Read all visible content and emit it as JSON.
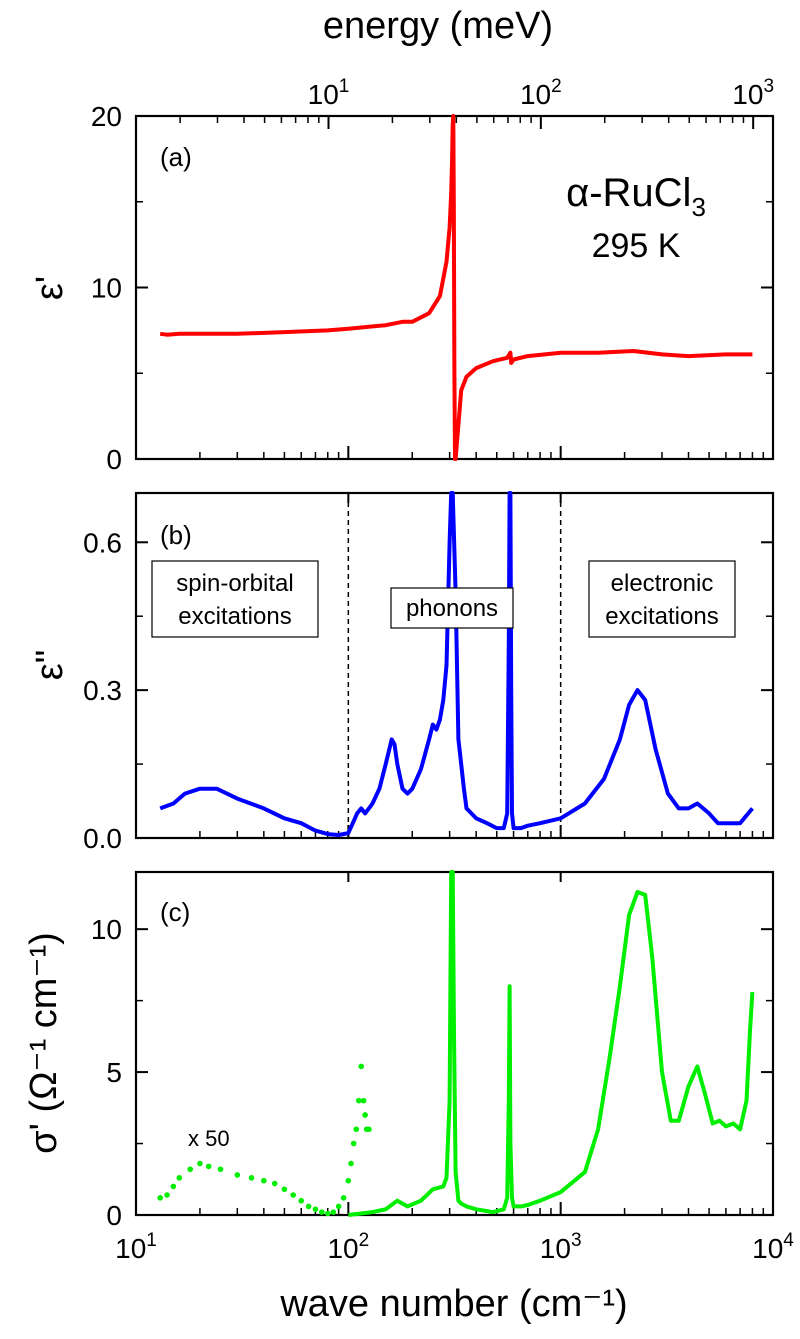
{
  "chart_data": [
    {
      "type": "line",
      "panel_label": "(a)",
      "ylabel": "ε'",
      "annotations": [
        "α-RuCl₃",
        "295 K"
      ],
      "xscale": "log",
      "xlim": [
        10,
        10000
      ],
      "ylim": [
        0,
        20
      ],
      "yticks": [
        0,
        10,
        20
      ],
      "color": "#ff0000",
      "series": [
        {
          "x": [
            13,
            14,
            16,
            20,
            30,
            50,
            80,
            100,
            150,
            180,
            200,
            240,
            270,
            290,
            300,
            305,
            308,
            310,
            312,
            314,
            316,
            318,
            320,
            340,
            360,
            400,
            480,
            560,
            580,
            585,
            600,
            700,
            1000,
            1500,
            2200,
            3000,
            4000,
            6000,
            8000
          ],
          "y": [
            7.3,
            7.25,
            7.3,
            7.3,
            7.3,
            7.4,
            7.5,
            7.6,
            7.8,
            8.0,
            8.0,
            8.5,
            9.5,
            11.5,
            13.5,
            15.5,
            17.5,
            19.5,
            20,
            15,
            5,
            0,
            0,
            4.0,
            4.8,
            5.3,
            5.7,
            5.9,
            6.2,
            5.6,
            5.8,
            6.0,
            6.2,
            6.2,
            6.3,
            6.1,
            6.0,
            6.1,
            6.1
          ]
        }
      ]
    },
    {
      "type": "line",
      "panel_label": "(b)",
      "ylabel": "ε\"",
      "xscale": "log",
      "xlim": [
        10,
        10000
      ],
      "ylim": [
        0,
        0.7
      ],
      "yticks": [
        0.0,
        0.3,
        0.6
      ],
      "ytick_labels": [
        "0.0",
        "0.3",
        "0.6"
      ],
      "color": "#0000ff",
      "regions": [
        {
          "label": [
            "spin-orbital",
            "excitations"
          ]
        },
        {
          "label": [
            "phonons"
          ]
        },
        {
          "label": [
            "electronic",
            "excitations"
          ]
        }
      ],
      "dividers_x": [
        100,
        1000
      ],
      "series": [
        {
          "x": [
            13,
            15,
            17,
            20,
            24,
            30,
            40,
            50,
            60,
            70,
            80,
            90,
            100,
            105,
            110,
            115,
            120,
            125,
            130,
            140,
            150,
            160,
            165,
            170,
            180,
            190,
            200,
            220,
            240,
            250,
            260,
            270,
            280,
            290,
            300,
            305,
            310,
            320,
            330,
            340,
            350,
            360,
            380,
            400,
            450,
            500,
            540,
            560,
            570,
            575,
            580,
            585,
            590,
            600,
            650,
            700,
            800,
            1000,
            1300,
            1600,
            1900,
            2100,
            2300,
            2500,
            2800,
            3200,
            3600,
            4000,
            4400,
            5000,
            5500,
            6000,
            7000,
            8000
          ],
          "y": [
            0.06,
            0.07,
            0.09,
            0.1,
            0.1,
            0.08,
            0.06,
            0.04,
            0.03,
            0.015,
            0.008,
            0.006,
            0.01,
            0.03,
            0.05,
            0.06,
            0.05,
            0.06,
            0.07,
            0.1,
            0.15,
            0.2,
            0.19,
            0.15,
            0.1,
            0.09,
            0.1,
            0.14,
            0.2,
            0.23,
            0.22,
            0.24,
            0.28,
            0.35,
            0.6,
            0.7,
            0.7,
            0.5,
            0.2,
            0.15,
            0.1,
            0.06,
            0.05,
            0.04,
            0.03,
            0.02,
            0.02,
            0.05,
            0.4,
            0.7,
            0.7,
            0.3,
            0.05,
            0.02,
            0.02,
            0.025,
            0.03,
            0.04,
            0.07,
            0.12,
            0.2,
            0.27,
            0.3,
            0.28,
            0.18,
            0.09,
            0.06,
            0.06,
            0.07,
            0.05,
            0.03,
            0.03,
            0.03,
            0.06
          ]
        }
      ]
    },
    {
      "type": "line",
      "panel_label": "(c)",
      "ylabel": "σ' (Ω⁻¹ cm⁻¹)",
      "xlabel": "wave number (cm⁻¹)",
      "top_xlabel": "energy (meV)",
      "annotations": [
        "x 50"
      ],
      "xscale": "log",
      "xlim": [
        10,
        10000
      ],
      "ylim": [
        0,
        12
      ],
      "yticks": [
        0,
        5,
        10
      ],
      "xticks": [
        10,
        100,
        1000,
        10000
      ],
      "xtick_labels": [
        "10^1",
        "10^2",
        "10^3",
        "10^4"
      ],
      "top_xticks_mev": [
        10,
        100,
        1000
      ],
      "top_xtick_labels": [
        "10^1",
        "10^2",
        "10^3"
      ],
      "color": "#00ee00",
      "series": [
        {
          "style": "dotted",
          "x": [
            13,
            14,
            15,
            16,
            18,
            20,
            22,
            25,
            30,
            35,
            40,
            45,
            50,
            55,
            60,
            65,
            70,
            75,
            80,
            85,
            90,
            95,
            100,
            103,
            106,
            109,
            112,
            115,
            118,
            120,
            122,
            125
          ],
          "y": [
            0.6,
            0.7,
            1.0,
            1.3,
            1.6,
            1.8,
            1.7,
            1.6,
            1.4,
            1.3,
            1.2,
            1.1,
            0.9,
            0.7,
            0.5,
            0.3,
            0.2,
            0.1,
            0.05,
            0.1,
            0.3,
            0.6,
            1.2,
            1.8,
            2.5,
            3.0,
            4.0,
            5.2,
            4.0,
            3.5,
            3.0,
            3.0
          ]
        },
        {
          "style": "solid",
          "x": [
            100,
            130,
            150,
            170,
            190,
            220,
            250,
            280,
            290,
            300,
            305,
            310,
            315,
            320,
            330,
            340,
            360,
            400,
            480,
            540,
            560,
            570,
            575,
            580,
            590,
            600,
            650,
            700,
            800,
            1000,
            1300,
            1500,
            1700,
            1900,
            2100,
            2300,
            2500,
            2700,
            3000,
            3300,
            3600,
            4000,
            4400,
            4800,
            5200,
            5600,
            6000,
            6500,
            7000,
            7500,
            7800,
            8000
          ],
          "y": [
            0.0,
            0.1,
            0.2,
            0.5,
            0.3,
            0.5,
            0.9,
            1.0,
            1.3,
            4.0,
            12,
            12,
            6,
            1.5,
            0.5,
            0.4,
            0.3,
            0.2,
            0.1,
            0.2,
            0.6,
            4.0,
            8.0,
            2.5,
            0.6,
            0.3,
            0.3,
            0.35,
            0.5,
            0.8,
            1.5,
            3.0,
            5.5,
            8.0,
            10.5,
            11.3,
            11.2,
            9.0,
            5.0,
            3.3,
            3.3,
            4.5,
            5.2,
            4.2,
            3.2,
            3.3,
            3.1,
            3.2,
            3.0,
            4.0,
            6.5,
            7.8
          ]
        }
      ]
    }
  ]
}
